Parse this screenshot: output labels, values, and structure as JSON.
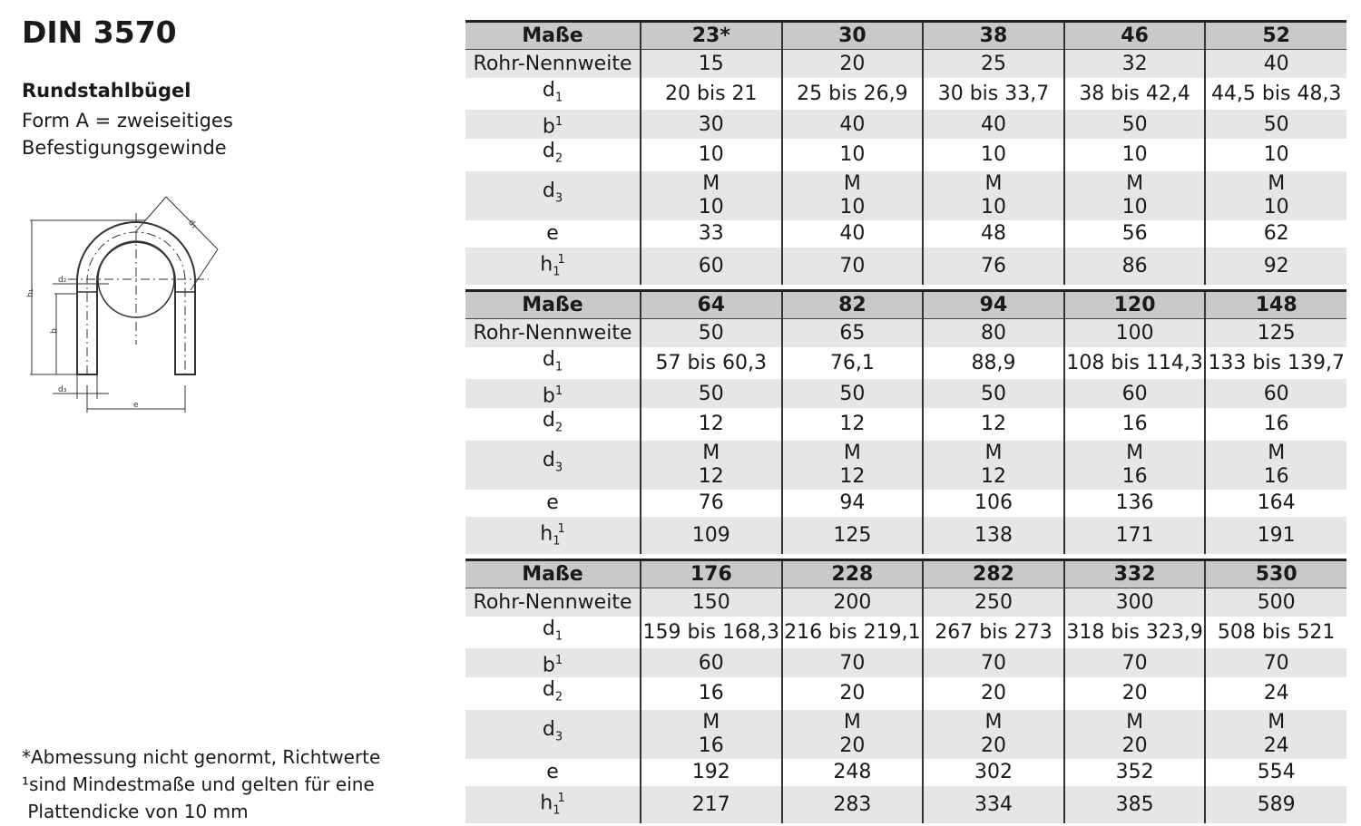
{
  "title": "DIN 3570",
  "subtitle": "Rundstahlbügel",
  "description": [
    "Form A = zweiseitiges",
    "Befestigungsgewinde"
  ],
  "drawing_labels": [
    "d1",
    "d2",
    "d3",
    "h1",
    "b",
    "e"
  ],
  "footnotes": [
    "*Abmessung nicht genormt, Richtwerte",
    "¹sind Mindestmaße und gelten für eine",
    " Plattendicke von 10 mm"
  ],
  "row_labels": [
    {
      "base": "Rohr-Nennweite"
    },
    {
      "base": "d",
      "sub": "1"
    },
    {
      "base": "b",
      "sup": "1"
    },
    {
      "base": "d",
      "sub": "2"
    },
    {
      "base": "d",
      "sub": "3"
    },
    {
      "base": "e"
    },
    {
      "base": "h",
      "sub": "1",
      "sup": "1"
    }
  ],
  "header_label": "Maße",
  "tables": [
    {
      "sizes": [
        "23*",
        "30",
        "38",
        "46",
        "52"
      ],
      "rows": [
        [
          "15",
          "20",
          "25",
          "32",
          "40"
        ],
        [
          "20 bis 21",
          "25 bis 26,9",
          "30 bis 33,7",
          "38 bis 42,4",
          "44,5 bis 48,3"
        ],
        [
          "30",
          "40",
          "40",
          "50",
          "50"
        ],
        [
          "10",
          "10",
          "10",
          "10",
          "10"
        ],
        [
          "M\n10",
          "M\n10",
          "M\n10",
          "M\n10",
          "M\n10"
        ],
        [
          "33",
          "40",
          "48",
          "56",
          "62"
        ],
        [
          "60",
          "70",
          "76",
          "86",
          "92"
        ]
      ]
    },
    {
      "sizes": [
        "64",
        "82",
        "94",
        "120",
        "148"
      ],
      "rows": [
        [
          "50",
          "65",
          "80",
          "100",
          "125"
        ],
        [
          "57 bis 60,3",
          "76,1",
          "88,9",
          "108 bis 114,3",
          "133 bis 139,7"
        ],
        [
          "50",
          "50",
          "50",
          "60",
          "60"
        ],
        [
          "12",
          "12",
          "12",
          "16",
          "16"
        ],
        [
          "M\n12",
          "M\n12",
          "M\n12",
          "M\n16",
          "M\n16"
        ],
        [
          "76",
          "94",
          "106",
          "136",
          "164"
        ],
        [
          "109",
          "125",
          "138",
          "171",
          "191"
        ]
      ]
    },
    {
      "sizes": [
        "176",
        "228",
        "282",
        "332",
        "530"
      ],
      "rows": [
        [
          "150",
          "200",
          "250",
          "300",
          "500"
        ],
        [
          "159 bis 168,3",
          "216 bis 219,1",
          "267 bis 273",
          "318 bis 323,9",
          "508 bis 521"
        ],
        [
          "60",
          "70",
          "70",
          "70",
          "70"
        ],
        [
          "16",
          "20",
          "20",
          "20",
          "24"
        ],
        [
          "M\n16",
          "M\n20",
          "M\n20",
          "M\n20",
          "M\n24"
        ],
        [
          "192",
          "248",
          "302",
          "352",
          "554"
        ],
        [
          "217",
          "283",
          "334",
          "385",
          "589"
        ]
      ]
    }
  ]
}
